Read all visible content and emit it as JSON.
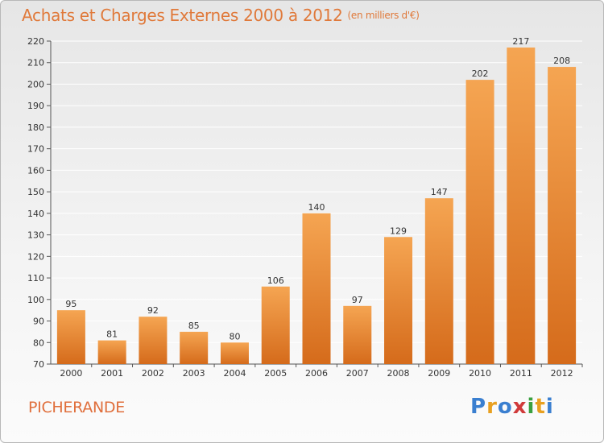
{
  "header": {
    "title": "Achats et Charges Externes 2000 à 2012",
    "unit": "(en milliers d'€)"
  },
  "footer": {
    "commune": "PICHERANDE",
    "logo_text": "Proxiti",
    "logo_colors": [
      "#3a7fd0",
      "#e8a020",
      "#3a7fd0",
      "#d03a3a",
      "#3aa040",
      "#e8a020",
      "#3a7fd0"
    ]
  },
  "colors": {
    "title": "#e0793a",
    "bar_top": "#f5a552",
    "bar_bottom": "#d56b1b",
    "grid": "#ffffff"
  },
  "chart_data": {
    "type": "bar",
    "title": "Achats et Charges Externes 2000 à 2012",
    "xlabel": "",
    "ylabel": "",
    "categories": [
      "2000",
      "2001",
      "2002",
      "2003",
      "2004",
      "2005",
      "2006",
      "2007",
      "2008",
      "2009",
      "2010",
      "2011",
      "2012"
    ],
    "values": [
      95,
      81,
      92,
      85,
      80,
      106,
      140,
      97,
      129,
      147,
      202,
      217,
      208
    ],
    "ylim": [
      70,
      220
    ],
    "yticks": [
      70,
      80,
      90,
      100,
      110,
      120,
      130,
      140,
      150,
      160,
      170,
      180,
      190,
      200,
      210,
      220
    ],
    "grid": true,
    "legend": "none"
  }
}
